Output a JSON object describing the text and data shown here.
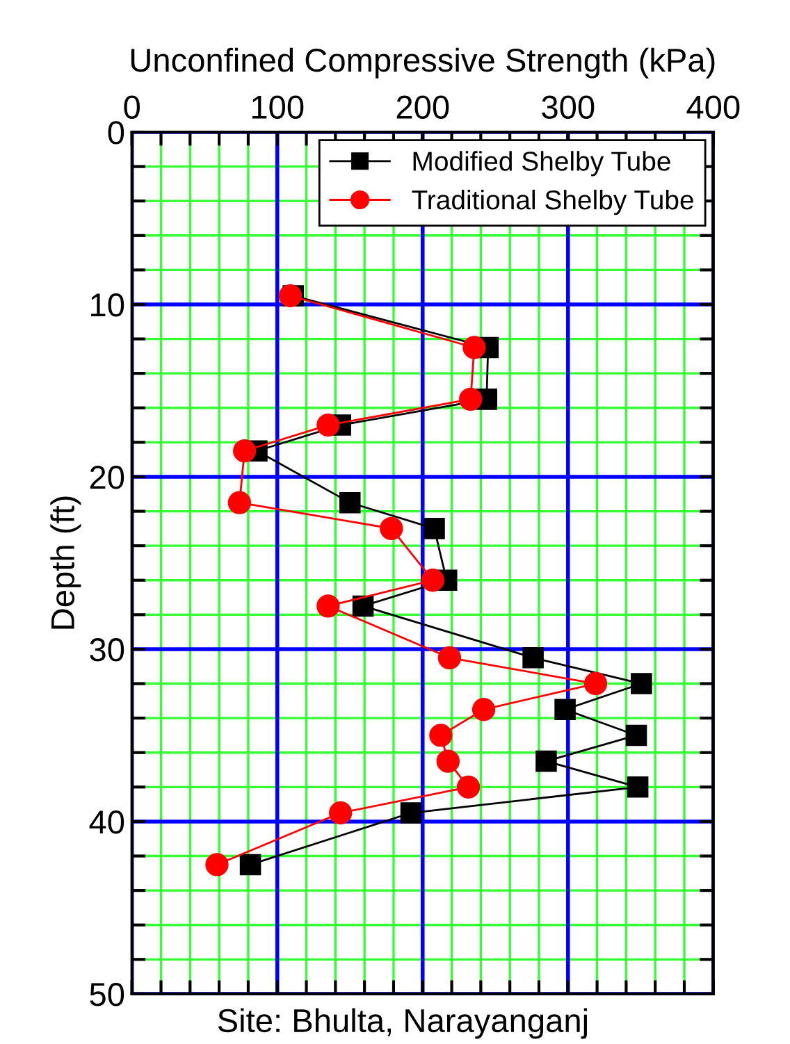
{
  "chart_data": {
    "type": "line",
    "xlabel": "Unconfined Compressive Strength (kPa)",
    "ylabel": "Depth (ft)",
    "annotations": [
      "Site: Bhulta, Narayanganj"
    ],
    "series": [
      {
        "name": "Modified Shelby Tube",
        "color": "#000000",
        "marker": "square",
        "x": [
          111,
          245,
          244,
          143.5,
          86,
          150,
          208,
          216.5,
          159,
          276,
          350.5,
          298,
          347,
          285,
          348,
          192,
          81.5
        ],
        "values": [
          9.5,
          12.5,
          15.5,
          17,
          18.5,
          21.5,
          23,
          26,
          27.5,
          30.5,
          32,
          33.5,
          35,
          36.5,
          38,
          39.5,
          42.5
        ]
      },
      {
        "name": "Traditional Shelby Tube",
        "color": "#ff0000",
        "marker": "circle",
        "x": [
          109,
          235.5,
          233,
          135,
          77.5,
          74,
          178.5,
          207,
          135,
          218.5,
          319,
          242,
          212.5,
          217.5,
          231.5,
          143.5,
          58.5
        ],
        "values": [
          9.5,
          12.5,
          15.5,
          17,
          18.5,
          21.5,
          23,
          26,
          27.5,
          30.5,
          32,
          33.5,
          35,
          36.5,
          38,
          39.5,
          42.5
        ]
      }
    ],
    "xlim": [
      0,
      400
    ],
    "ylim": [
      50,
      0
    ],
    "xticks": [
      0,
      {
        "value": 20,
        "label": null
      },
      {
        "value": 40,
        "label": null
      },
      {
        "value": 60,
        "label": null
      },
      {
        "value": 80,
        "label": null
      },
      100,
      {
        "value": 120,
        "label": null
      },
      {
        "value": 140,
        "label": null
      },
      {
        "value": 160,
        "label": null
      },
      {
        "value": 180,
        "label": null
      },
      200,
      {
        "value": 220,
        "label": null
      },
      {
        "value": 240,
        "label": null
      },
      {
        "value": 260,
        "label": null
      },
      {
        "value": 280,
        "label": null
      },
      300,
      {
        "value": 320,
        "label": null
      },
      {
        "value": 340,
        "label": null
      },
      {
        "value": 360,
        "label": null
      },
      {
        "value": 380,
        "label": null
      },
      400
    ],
    "yticks": [
      0,
      {
        "value": 2,
        "label": null
      },
      {
        "value": 4,
        "label": null
      },
      {
        "value": 6,
        "label": null
      },
      {
        "value": 8,
        "label": null
      },
      10,
      {
        "value": 12,
        "label": null
      },
      {
        "value": 14,
        "label": null
      },
      {
        "value": 16,
        "label": null
      },
      {
        "value": 18,
        "label": null
      },
      20,
      {
        "value": 22,
        "label": null
      },
      {
        "value": 24,
        "label": null
      },
      {
        "value": 26,
        "label": null
      },
      {
        "value": 28,
        "label": null
      },
      30,
      {
        "value": 32,
        "label": null
      },
      {
        "value": 34,
        "label": null
      },
      {
        "value": 36,
        "label": null
      },
      {
        "value": 38,
        "label": null
      },
      40,
      {
        "value": 42,
        "label": null
      },
      {
        "value": 44,
        "label": null
      },
      {
        "value": 46,
        "label": null
      },
      {
        "value": 48,
        "label": null
      },
      50
    ],
    "grid": true,
    "legend": "top right",
    "line_style": "solid"
  }
}
